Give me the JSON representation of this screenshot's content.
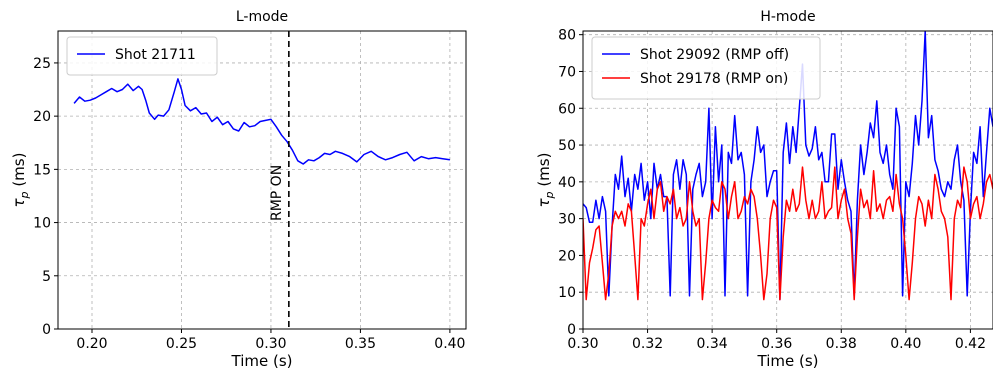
{
  "chart_data": [
    {
      "type": "line",
      "title": "L-mode",
      "xlabel": "Time (s)",
      "ylabel": "τ_p (ms)",
      "xlim": [
        0.181,
        0.409
      ],
      "ylim": [
        0,
        28
      ],
      "xticks": [
        0.2,
        0.25,
        0.3,
        0.35,
        0.4
      ],
      "xtick_labels": [
        "0.20",
        "0.25",
        "0.30",
        "0.35",
        "0.40"
      ],
      "yticks": [
        0,
        5,
        10,
        15,
        20,
        25
      ],
      "ytick_labels": [
        "0",
        "5",
        "10",
        "15",
        "20",
        "25"
      ],
      "grid": true,
      "legend_position": "top-left",
      "series": [
        {
          "name": "Shot 21711",
          "color": "#0000ff",
          "x": [
            0.19,
            0.193,
            0.196,
            0.199,
            0.202,
            0.205,
            0.208,
            0.211,
            0.214,
            0.217,
            0.22,
            0.223,
            0.226,
            0.228,
            0.23,
            0.232,
            0.235,
            0.237,
            0.24,
            0.243,
            0.246,
            0.248,
            0.25,
            0.252,
            0.255,
            0.258,
            0.261,
            0.264,
            0.267,
            0.27,
            0.273,
            0.276,
            0.279,
            0.282,
            0.285,
            0.288,
            0.291,
            0.294,
            0.297,
            0.3,
            0.303,
            0.306,
            0.309,
            0.312,
            0.315,
            0.318,
            0.321,
            0.324,
            0.327,
            0.33,
            0.333,
            0.336,
            0.34,
            0.344,
            0.348,
            0.352,
            0.356,
            0.36,
            0.364,
            0.368,
            0.372,
            0.376,
            0.38,
            0.384,
            0.388,
            0.392,
            0.396,
            0.4
          ],
          "y": [
            21.2,
            21.8,
            21.4,
            21.5,
            21.7,
            22.0,
            22.3,
            22.6,
            22.3,
            22.5,
            23.0,
            22.4,
            22.8,
            22.5,
            21.5,
            20.3,
            19.7,
            20.1,
            20.0,
            20.6,
            22.3,
            23.5,
            22.5,
            21.0,
            20.5,
            20.8,
            20.2,
            20.3,
            19.5,
            19.9,
            19.2,
            19.5,
            18.8,
            18.6,
            19.4,
            19.0,
            19.1,
            19.5,
            19.6,
            19.7,
            19.0,
            18.2,
            17.6,
            16.8,
            15.8,
            15.5,
            15.9,
            15.8,
            16.1,
            16.5,
            16.4,
            16.7,
            16.5,
            16.2,
            15.7,
            16.4,
            16.7,
            16.2,
            15.9,
            16.1,
            16.4,
            16.6,
            15.8,
            16.2,
            16.0,
            16.1,
            16.0,
            15.9
          ]
        }
      ],
      "annotations": [
        {
          "text": "RMP ON",
          "x": 0.31
        }
      ]
    },
    {
      "type": "line",
      "title": "H-mode",
      "xlabel": "Time (s)",
      "ylabel": "τ_p (ms)",
      "xlim": [
        0.3,
        0.427
      ],
      "ylim": [
        0,
        81
      ],
      "xticks": [
        0.3,
        0.32,
        0.34,
        0.36,
        0.38,
        0.4,
        0.42
      ],
      "xtick_labels": [
        "0.30",
        "0.32",
        "0.34",
        "0.36",
        "0.38",
        "0.40",
        "0.42"
      ],
      "yticks": [
        0,
        10,
        20,
        30,
        40,
        50,
        60,
        70,
        80
      ],
      "ytick_labels": [
        "0",
        "10",
        "20",
        "30",
        "40",
        "50",
        "60",
        "70",
        "80"
      ],
      "grid": true,
      "legend_position": "top-left",
      "series": [
        {
          "name": "Shot 29092 (RMP off)",
          "color": "#0000ff",
          "x": [
            0.3,
            0.301,
            0.302,
            0.303,
            0.304,
            0.305,
            0.306,
            0.307,
            0.308,
            0.309,
            0.31,
            0.311,
            0.312,
            0.313,
            0.314,
            0.315,
            0.316,
            0.317,
            0.318,
            0.319,
            0.32,
            0.321,
            0.322,
            0.323,
            0.324,
            0.325,
            0.326,
            0.327,
            0.328,
            0.329,
            0.33,
            0.331,
            0.332,
            0.333,
            0.334,
            0.335,
            0.336,
            0.337,
            0.338,
            0.339,
            0.34,
            0.341,
            0.342,
            0.343,
            0.344,
            0.345,
            0.346,
            0.347,
            0.348,
            0.349,
            0.35,
            0.351,
            0.352,
            0.353,
            0.354,
            0.355,
            0.356,
            0.357,
            0.358,
            0.359,
            0.36,
            0.361,
            0.362,
            0.363,
            0.364,
            0.365,
            0.366,
            0.367,
            0.368,
            0.369,
            0.37,
            0.371,
            0.372,
            0.373,
            0.374,
            0.375,
            0.376,
            0.377,
            0.378,
            0.379,
            0.38,
            0.381,
            0.382,
            0.383,
            0.384,
            0.385,
            0.386,
            0.387,
            0.388,
            0.389,
            0.39,
            0.391,
            0.392,
            0.393,
            0.394,
            0.395,
            0.396,
            0.397,
            0.398,
            0.399,
            0.4,
            0.401,
            0.402,
            0.403,
            0.404,
            0.405,
            0.406,
            0.407,
            0.408,
            0.409,
            0.41,
            0.411,
            0.412,
            0.413,
            0.414,
            0.415,
            0.416,
            0.417,
            0.418,
            0.419,
            0.42,
            0.421,
            0.422,
            0.423,
            0.424,
            0.425,
            0.426,
            0.427
          ],
          "y": [
            34,
            33,
            29,
            29,
            35,
            30,
            36,
            32,
            9,
            28,
            42,
            38,
            47,
            36,
            41,
            32,
            42,
            38,
            45,
            35,
            40,
            30,
            45,
            38,
            42,
            36,
            36,
            9,
            42,
            46,
            38,
            46,
            42,
            9,
            38,
            42,
            45,
            36,
            40,
            60,
            30,
            55,
            40,
            50,
            9,
            48,
            45,
            58,
            46,
            48,
            42,
            9,
            40,
            46,
            55,
            48,
            50,
            36,
            40,
            43,
            43,
            8,
            48,
            56,
            45,
            55,
            48,
            60,
            72,
            50,
            47,
            49,
            55,
            46,
            48,
            40,
            40,
            53,
            53,
            38,
            46,
            40,
            35,
            32,
            9,
            35,
            50,
            42,
            48,
            56,
            52,
            62,
            48,
            45,
            50,
            42,
            38,
            60,
            55,
            9,
            40,
            36,
            45,
            58,
            50,
            62,
            81,
            52,
            58,
            46,
            43,
            38,
            36,
            40,
            38,
            46,
            50,
            40,
            35,
            9,
            32,
            48,
            45,
            55,
            36,
            48,
            60,
            55
          ]
        },
        {
          "name": "Shot 29178 (RMP on)",
          "color": "#ff0000",
          "x": [
            0.3,
            0.301,
            0.302,
            0.303,
            0.304,
            0.305,
            0.306,
            0.307,
            0.308,
            0.309,
            0.31,
            0.311,
            0.312,
            0.313,
            0.314,
            0.315,
            0.316,
            0.317,
            0.318,
            0.319,
            0.32,
            0.321,
            0.322,
            0.323,
            0.324,
            0.325,
            0.326,
            0.327,
            0.328,
            0.329,
            0.33,
            0.331,
            0.332,
            0.333,
            0.334,
            0.335,
            0.336,
            0.337,
            0.338,
            0.339,
            0.34,
            0.341,
            0.342,
            0.343,
            0.344,
            0.345,
            0.346,
            0.347,
            0.348,
            0.349,
            0.35,
            0.351,
            0.352,
            0.353,
            0.354,
            0.355,
            0.356,
            0.357,
            0.358,
            0.359,
            0.36,
            0.361,
            0.362,
            0.363,
            0.364,
            0.365,
            0.366,
            0.367,
            0.368,
            0.369,
            0.37,
            0.371,
            0.372,
            0.373,
            0.374,
            0.375,
            0.376,
            0.377,
            0.378,
            0.379,
            0.38,
            0.381,
            0.382,
            0.383,
            0.384,
            0.385,
            0.386,
            0.387,
            0.388,
            0.389,
            0.39,
            0.391,
            0.392,
            0.393,
            0.394,
            0.395,
            0.396,
            0.397,
            0.398,
            0.399,
            0.4,
            0.401,
            0.402,
            0.403,
            0.404,
            0.405,
            0.406,
            0.407,
            0.408,
            0.409,
            0.41,
            0.411,
            0.412,
            0.413,
            0.414,
            0.415,
            0.416,
            0.417,
            0.418,
            0.419,
            0.42,
            0.421,
            0.422,
            0.423,
            0.424,
            0.425,
            0.426,
            0.427
          ],
          "y": [
            30,
            8,
            18,
            22,
            27,
            28,
            18,
            8,
            15,
            28,
            32,
            30,
            32,
            28,
            34,
            32,
            20,
            8,
            30,
            28,
            34,
            38,
            30,
            38,
            40,
            32,
            36,
            34,
            38,
            30,
            33,
            28,
            30,
            40,
            32,
            28,
            30,
            8,
            18,
            30,
            35,
            33,
            32,
            40,
            38,
            30,
            36,
            40,
            30,
            32,
            36,
            34,
            38,
            36,
            30,
            20,
            8,
            15,
            30,
            35,
            33,
            8,
            25,
            35,
            32,
            38,
            32,
            34,
            44,
            35,
            30,
            35,
            30,
            32,
            40,
            30,
            32,
            33,
            44,
            30,
            35,
            38,
            30,
            26,
            8,
            25,
            38,
            33,
            35,
            30,
            43,
            32,
            34,
            30,
            35,
            36,
            32,
            42,
            34,
            30,
            20,
            8,
            18,
            30,
            36,
            34,
            28,
            35,
            30,
            42,
            38,
            32,
            30,
            25,
            8,
            30,
            35,
            33,
            44,
            40,
            30,
            34,
            36,
            30,
            34,
            40,
            42,
            38
          ]
        }
      ],
      "annotations": []
    }
  ]
}
